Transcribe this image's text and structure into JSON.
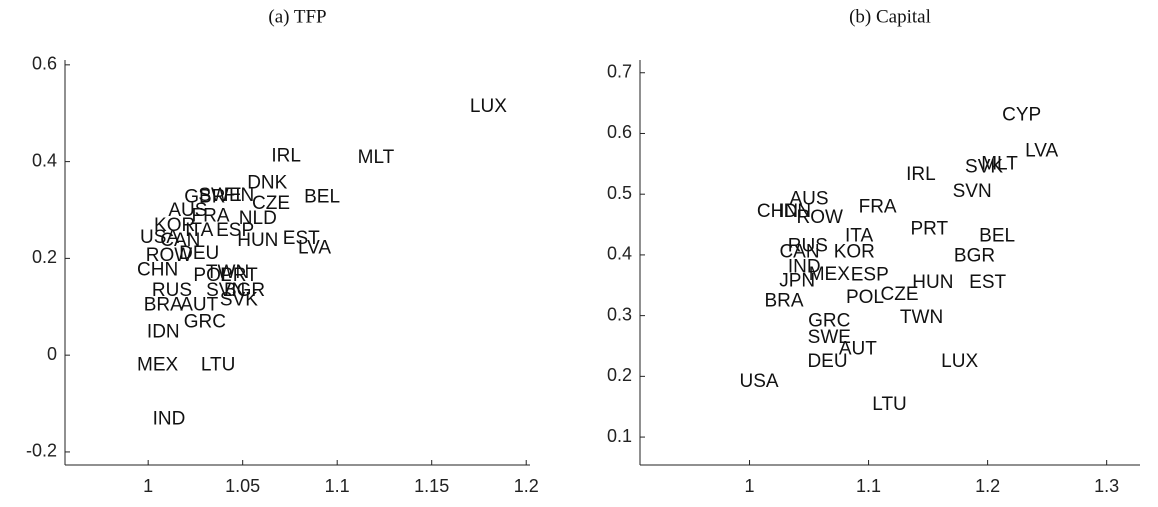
{
  "chart_data": [
    {
      "type": "scatter",
      "title": "(a) TFP",
      "labels": [
        "LUX",
        "MLT",
        "IRL",
        "DNK",
        "BEL",
        "EST",
        "LVA",
        "HUN",
        "CZE",
        "NLD",
        "GBR",
        "AUS",
        "USA",
        "CHN",
        "ROW",
        "DEU",
        "POL",
        "TWN",
        "BGR",
        "SVK",
        "RUS",
        "BRA",
        "AUT",
        "GRC",
        "IDN",
        "MEX",
        "LTU",
        "IND",
        "KOR",
        "CAN",
        "FRA",
        "SWE",
        "FIN",
        "ESP",
        "ITA",
        "PRT",
        "SVN"
      ],
      "x": [
        1.18,
        1.1205,
        1.073,
        1.063,
        1.092,
        1.081,
        1.088,
        1.058,
        1.065,
        1.058,
        1.03,
        1.021,
        1.006,
        1.005,
        1.011,
        1.027,
        1.034,
        1.042,
        1.051,
        1.048,
        1.0126,
        1.008,
        1.027,
        1.03,
        1.008,
        1.005,
        1.037,
        1.011,
        1.014,
        1.017,
        1.033,
        1.038,
        1.048,
        1.046,
        1.027,
        1.048,
        1.041
      ],
      "y": [
        0.513,
        0.407,
        0.411,
        0.355,
        0.326,
        0.24,
        0.22,
        0.236,
        0.312,
        0.281,
        0.326,
        0.298,
        0.242,
        0.175,
        0.205,
        0.209,
        0.164,
        0.17,
        0.133,
        0.113,
        0.133,
        0.103,
        0.103,
        0.068,
        0.047,
        -0.021,
        -0.021,
        -0.133,
        0.267,
        0.236,
        0.287,
        0.329,
        0.329,
        0.257,
        0.257,
        0.164,
        0.133
      ],
      "xlim": [
        0.956,
        1.202
      ],
      "ylim": [
        -0.227,
        0.61
      ],
      "xticks": [
        1,
        1.05,
        1.1,
        1.15,
        1.2
      ],
      "yticks": [
        -0.2,
        0,
        0.2,
        0.4,
        0.6
      ]
    },
    {
      "type": "scatter",
      "title": "(b) Capital",
      "labels": [
        "CYP",
        "LVA",
        "MLT",
        "SVK",
        "SVN",
        "IRL",
        "FRA",
        "AUS",
        "CHN",
        "IDN",
        "ROW",
        "PRT",
        "BEL",
        "ITA",
        "BGR",
        "RUS",
        "KOR",
        "CAN",
        "IND",
        "MEX",
        "JPN",
        "ESP",
        "HUN",
        "EST",
        "BRA",
        "POL",
        "CZE",
        "AUT",
        "TWN",
        "GRC",
        "SWE",
        "DEU",
        "USA",
        "LUX",
        "LTU"
      ],
      "x": [
        1.2286,
        1.2454,
        1.21,
        1.197,
        1.187,
        1.144,
        1.1076,
        1.05,
        1.0235,
        1.038,
        1.059,
        1.151,
        1.208,
        1.092,
        1.189,
        1.049,
        1.088,
        1.042,
        1.046,
        1.067,
        1.04,
        1.101,
        1.154,
        1.2,
        1.029,
        1.097,
        1.126,
        1.091,
        1.1445,
        1.067,
        1.067,
        1.0655,
        1.008,
        1.1765,
        1.1176
      ],
      "y": [
        0.63,
        0.57,
        0.549,
        0.544,
        0.504,
        0.532,
        0.478,
        0.491,
        0.471,
        0.471,
        0.461,
        0.442,
        0.43,
        0.43,
        0.397,
        0.414,
        0.404,
        0.404,
        0.379,
        0.367,
        0.356,
        0.366,
        0.354,
        0.354,
        0.323,
        0.329,
        0.334,
        0.244,
        0.296,
        0.29,
        0.263,
        0.224,
        0.191,
        0.224,
        0.153
      ],
      "xlim": [
        0.908,
        1.328
      ],
      "ylim": [
        0.054,
        0.721
      ],
      "xticks": [
        1,
        1.1,
        1.2,
        1.3
      ],
      "yticks": [
        0.1,
        0.2,
        0.3,
        0.4,
        0.5,
        0.6,
        0.7
      ]
    }
  ]
}
